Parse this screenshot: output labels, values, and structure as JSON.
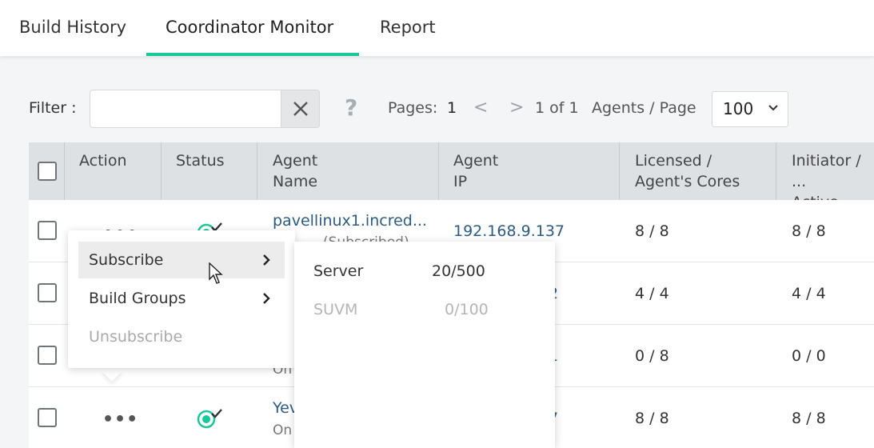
{
  "tabs": [
    {
      "label": "Build History",
      "active": false
    },
    {
      "label": "Coordinator Monitor",
      "active": true
    },
    {
      "label": "Report",
      "active": false
    }
  ],
  "toolbar": {
    "filter_label": "Filter :",
    "filter_value": "",
    "filter_placeholder": "",
    "help_glyph": "?",
    "pages_label": "Pages:",
    "page_current": "1",
    "prev_glyph": "<",
    "next_glyph": ">",
    "page_of": "1 of 1",
    "per_page_label": "Agents / Page",
    "per_page_value": "100"
  },
  "table": {
    "headers": {
      "action": "Action",
      "status": "Status",
      "agent_name_1": "Agent",
      "agent_name_2": "Name",
      "agent_ip_1": "Agent",
      "agent_ip_2": "IP",
      "licensed_1": "Licensed /",
      "licensed_2": "Agent's Cores",
      "initiator_1": "Initiator / ...",
      "initiator_2": "Active Cores"
    },
    "rows": [
      {
        "name": "pavellinux1.incred...",
        "sub": "(Subscribed)",
        "ip": "192.168.9.137",
        "licensed": "8 / 8",
        "initiator": "8 / 8"
      },
      {
        "name": "",
        "sub": "",
        "ip": "2",
        "licensed": "4 / 4",
        "initiator": "4 / 4"
      },
      {
        "name": "",
        "sub": "On",
        "ip": "1",
        "licensed": "0 / 8",
        "initiator": "0 / 0"
      },
      {
        "name": "Yev",
        "sub": "On",
        "ip": "7",
        "licensed": "8 / 8",
        "initiator": "8 / 8"
      }
    ],
    "action_glyph": "•••"
  },
  "context_menu": {
    "items": [
      {
        "label": "Subscribe",
        "has_submenu": true,
        "state": "hover"
      },
      {
        "label": "Build Groups",
        "has_submenu": true,
        "state": "normal"
      },
      {
        "label": "Unsubscribe",
        "has_submenu": false,
        "state": "disabled"
      }
    ]
  },
  "submenu": {
    "items": [
      {
        "label": "Server",
        "value": "20/500",
        "enabled": true
      },
      {
        "label": "SUVM",
        "value": "0/100",
        "enabled": false
      }
    ]
  },
  "colors": {
    "accent": "#18c79a",
    "link": "#2d5b82",
    "header_bg": "#dde1e4"
  }
}
